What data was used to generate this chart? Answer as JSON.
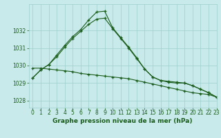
{
  "title": "Graphe pression niveau de la mer (hPa)",
  "background_color": "#c8eaea",
  "grid_color": "#9ecece",
  "line_color": "#1a5c1a",
  "xlim": [
    -0.5,
    23
  ],
  "ylim": [
    1027.6,
    1033.5
  ],
  "yticks": [
    1028,
    1029,
    1030,
    1031,
    1032
  ],
  "xticks": [
    0,
    1,
    2,
    3,
    4,
    5,
    6,
    7,
    8,
    9,
    10,
    11,
    12,
    13,
    14,
    15,
    16,
    17,
    18,
    19,
    20,
    21,
    22,
    23
  ],
  "series1_flat": {
    "x": [
      0,
      1,
      2,
      3,
      4,
      5,
      6,
      7,
      8,
      9,
      10,
      11,
      12,
      13,
      14,
      15,
      16,
      17,
      18,
      19,
      20,
      21,
      22,
      23
    ],
    "y": [
      1029.85,
      1029.85,
      1029.8,
      1029.75,
      1029.7,
      1029.65,
      1029.55,
      1029.5,
      1029.45,
      1029.4,
      1029.35,
      1029.3,
      1029.25,
      1029.15,
      1029.05,
      1028.95,
      1028.85,
      1028.75,
      1028.65,
      1028.55,
      1028.45,
      1028.4,
      1028.35,
      1028.2
    ]
  },
  "series2_mid": {
    "x": [
      0,
      1,
      2,
      3,
      4,
      5,
      6,
      7,
      8,
      9,
      10,
      11,
      12,
      13,
      14,
      15,
      16,
      17,
      18,
      19,
      20,
      21,
      22,
      23
    ],
    "y": [
      1029.3,
      1029.75,
      1030.05,
      1030.5,
      1031.05,
      1031.55,
      1031.95,
      1032.35,
      1032.65,
      1032.7,
      1032.1,
      1031.55,
      1031.0,
      1030.4,
      1029.8,
      1029.35,
      1029.15,
      1029.05,
      1029.0,
      1029.0,
      1028.85,
      1028.65,
      1028.45,
      1028.2
    ]
  },
  "series3_high": {
    "x": [
      0,
      1,
      2,
      3,
      4,
      5,
      6,
      7,
      8,
      9,
      10,
      11,
      12,
      13,
      14,
      15,
      16,
      17,
      18,
      19,
      20,
      21,
      22,
      23
    ],
    "y": [
      1029.3,
      1029.75,
      1030.05,
      1030.6,
      1031.15,
      1031.65,
      1032.05,
      1032.6,
      1033.05,
      1033.1,
      1032.15,
      1031.6,
      1031.05,
      1030.45,
      1029.8,
      1029.35,
      1029.15,
      1029.1,
      1029.05,
      1029.0,
      1028.85,
      1028.65,
      1028.45,
      1028.2
    ]
  },
  "title_fontsize": 6.5,
  "tick_fontsize": 5.5
}
